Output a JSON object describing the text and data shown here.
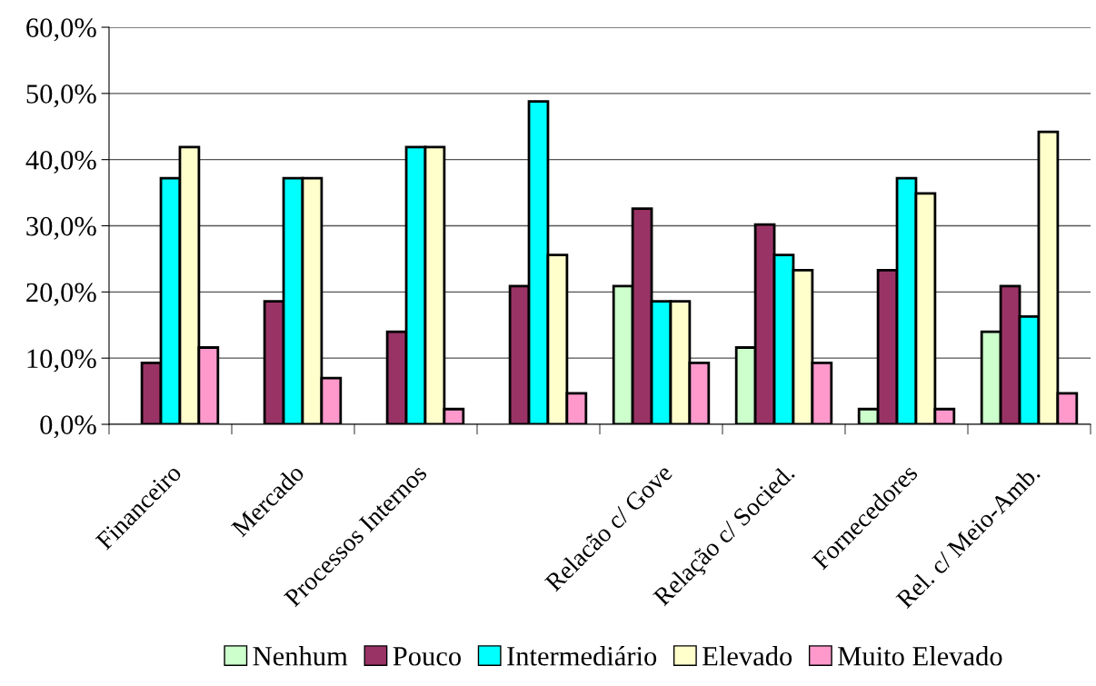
{
  "chart_data": {
    "type": "bar",
    "categories": [
      "Financeiro",
      "Mercado",
      "Processos Internos",
      null,
      "Relacão c/ Gove",
      "Relação c/ Socied.",
      "Fornecedores",
      "Rel. c/ Meio-Amb."
    ],
    "series": [
      {
        "name": "Nenhum",
        "color": "#ccffcc",
        "values": [
          null,
          null,
          null,
          null,
          20.9,
          11.6,
          2.3,
          14.0
        ]
      },
      {
        "name": "Pouco",
        "color": "#993366",
        "values": [
          9.3,
          18.6,
          14.0,
          20.9,
          32.6,
          30.2,
          23.3,
          20.9
        ]
      },
      {
        "name": "Intermediário",
        "color": "#00ffff",
        "values": [
          37.2,
          37.2,
          41.9,
          48.8,
          18.6,
          25.6,
          37.2,
          16.3
        ]
      },
      {
        "name": "Elevado",
        "color": "#ffffcc",
        "values": [
          41.9,
          37.2,
          41.9,
          25.6,
          18.6,
          23.3,
          34.9,
          44.2
        ]
      },
      {
        "name": "Muito Elevado",
        "color": "#ff99cc",
        "values": [
          11.6,
          7.0,
          2.3,
          4.7,
          9.3,
          9.3,
          2.3,
          4.7
        ]
      }
    ],
    "ylim": [
      0,
      60
    ],
    "yticks": [
      {
        "value": 0,
        "label": "0,0%"
      },
      {
        "value": 10,
        "label": "10,0%"
      },
      {
        "value": 20,
        "label": "20,0%"
      },
      {
        "value": 30,
        "label": "30,0%"
      },
      {
        "value": 40,
        "label": "40,0%"
      },
      {
        "value": 50,
        "label": "50,0%"
      },
      {
        "value": 60,
        "label": "60,0%"
      }
    ],
    "grid": "y",
    "legend": "bottom"
  }
}
